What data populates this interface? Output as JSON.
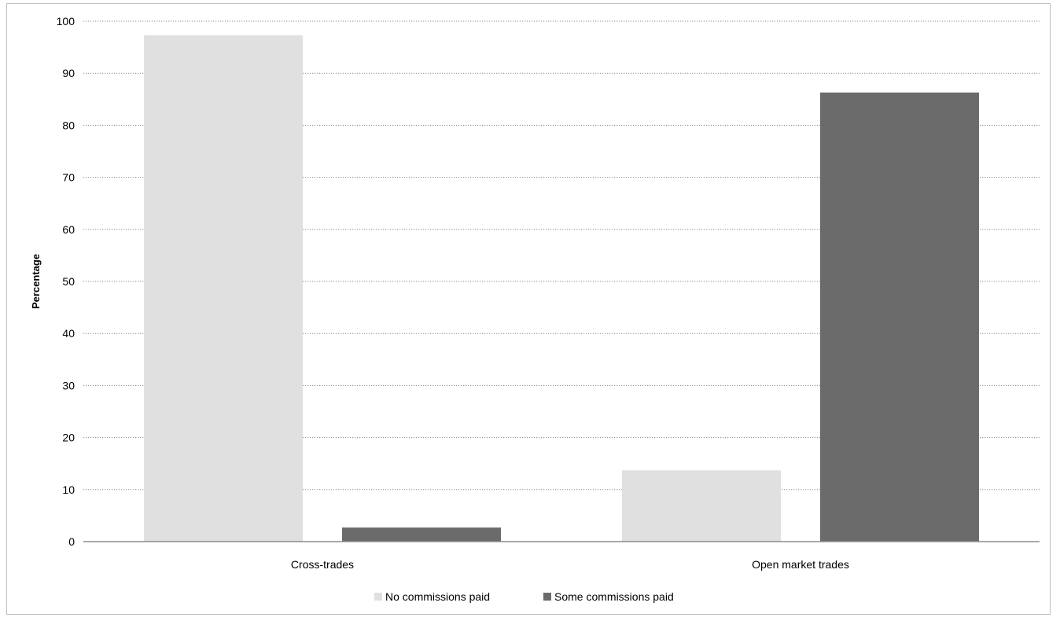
{
  "chart_data": {
    "type": "bar",
    "categories": [
      "Cross-trades",
      "Open market trades"
    ],
    "series": [
      {
        "name": "No commissions paid",
        "values": [
          97.3,
          13.7
        ],
        "color": "#e0e0e0"
      },
      {
        "name": "Some commissions paid",
        "values": [
          2.7,
          86.3
        ],
        "color": "#6b6b6b"
      }
    ],
    "xlabel": "",
    "ylabel": "Percentage",
    "ylim": [
      0,
      100
    ],
    "yticks": [
      0,
      10,
      20,
      30,
      40,
      50,
      60,
      70,
      80,
      90,
      100
    ],
    "grid": true,
    "legend_position": "bottom"
  }
}
